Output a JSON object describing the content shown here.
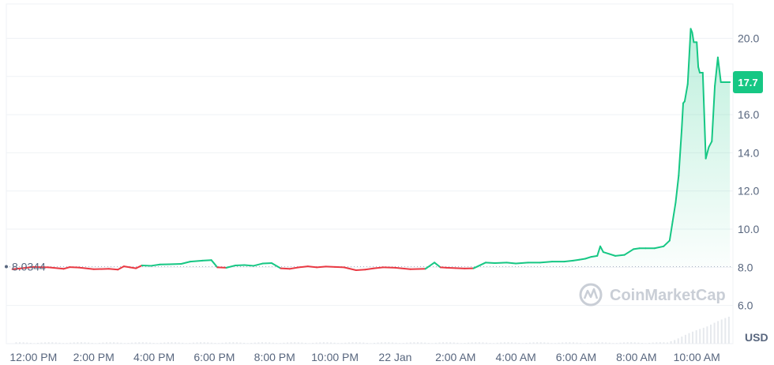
{
  "chart_data": {
    "type": "line",
    "currency": "USD",
    "open_price_label": "8.0344",
    "open_price": 8.0344,
    "current_price_label": "17.7",
    "current_price": 17.7,
    "x_tick_labels": [
      "12:00 PM",
      "2:00 PM",
      "4:00 PM",
      "6:00 PM",
      "8:00 PM",
      "10:00 PM",
      "22 Jan",
      "2:00 AM",
      "4:00 AM",
      "6:00 AM",
      "8:00 AM",
      "10:00 AM"
    ],
    "x_tick_hours": [
      0,
      2,
      4,
      6,
      8,
      10,
      12,
      14,
      16,
      18,
      20,
      22
    ],
    "y_tick_labels": [
      "6.0",
      "8.0",
      "10.0",
      "12.0",
      "14.0",
      "16.0",
      "18.0",
      "20.0"
    ],
    "y_ticks": [
      6,
      8,
      10,
      12,
      14,
      16,
      18,
      20
    ],
    "ylim": [
      4.0,
      21.8
    ],
    "xlim_hours": [
      -0.9,
      23.2
    ],
    "grid": true,
    "watermark": "CoinMarketCap",
    "colors": {
      "up": "#16c784",
      "down": "#ea3943",
      "grid": "#eff2f5",
      "badge": "#16c784",
      "text": "#58667e",
      "volume": "#e6e9ed",
      "baseline": "#a6b0c3"
    },
    "series": [
      {
        "x": [
          -0.7,
          -0.4,
          0,
          0.5,
          1,
          1.2,
          1.5,
          2,
          2.5,
          2.8,
          3,
          3.2,
          3.4,
          3.6,
          3.9,
          4.2,
          4.5,
          4.9,
          5.2,
          5.6,
          5.9,
          6.1,
          6.4,
          6.7,
          7,
          7.3,
          7.6,
          7.9,
          8.2,
          8.5,
          8.8,
          9.1,
          9.4,
          9.7,
          10,
          10.3,
          10.7,
          11,
          11.3,
          11.6,
          12,
          12.5,
          13,
          13.3,
          13.5,
          13.7,
          14,
          14.3,
          14.6,
          15,
          15.3,
          15.7,
          16,
          16.4,
          16.8,
          17.2,
          17.6,
          17.9,
          18.1,
          18.3,
          18.5,
          18.7,
          18.8,
          18.9,
          19.1,
          19.3,
          19.6,
          19.9,
          20.1,
          20.3,
          20.6,
          20.9,
          21.1,
          21.2,
          21.3,
          21.4,
          21.5,
          21.55,
          21.6,
          21.7,
          21.8,
          21.85,
          21.9,
          22,
          22.05,
          22.1,
          22.2,
          22.3,
          22.4,
          22.5,
          22.6,
          22.7,
          22.8,
          22.9,
          23.1
        ],
        "y": [
          7.9,
          7.95,
          8.02,
          8.0,
          7.92,
          8.01,
          7.99,
          7.9,
          7.92,
          7.88,
          8.05,
          8.0,
          7.95,
          8.1,
          8.08,
          8.15,
          8.16,
          8.18,
          8.3,
          8.35,
          8.38,
          8.0,
          7.98,
          8.1,
          8.12,
          8.08,
          8.2,
          8.22,
          7.95,
          7.92,
          8.0,
          8.05,
          8.0,
          8.04,
          8.02,
          8.0,
          7.85,
          7.88,
          7.95,
          8.0,
          7.98,
          7.9,
          7.92,
          8.25,
          8.0,
          7.98,
          7.96,
          7.94,
          7.95,
          8.25,
          8.22,
          8.25,
          8.2,
          8.25,
          8.25,
          8.3,
          8.3,
          8.35,
          8.4,
          8.45,
          8.55,
          8.6,
          9.1,
          8.8,
          8.7,
          8.6,
          8.65,
          8.95,
          9.0,
          9.0,
          9.0,
          9.1,
          9.4,
          10.4,
          11.4,
          12.8,
          15.2,
          16.6,
          16.7,
          17.6,
          20.5,
          20.3,
          19.8,
          19.8,
          18.5,
          18.2,
          18.2,
          13.7,
          14.3,
          14.6,
          17.5,
          19.0,
          17.7,
          17.7,
          17.7
        ]
      }
    ]
  }
}
